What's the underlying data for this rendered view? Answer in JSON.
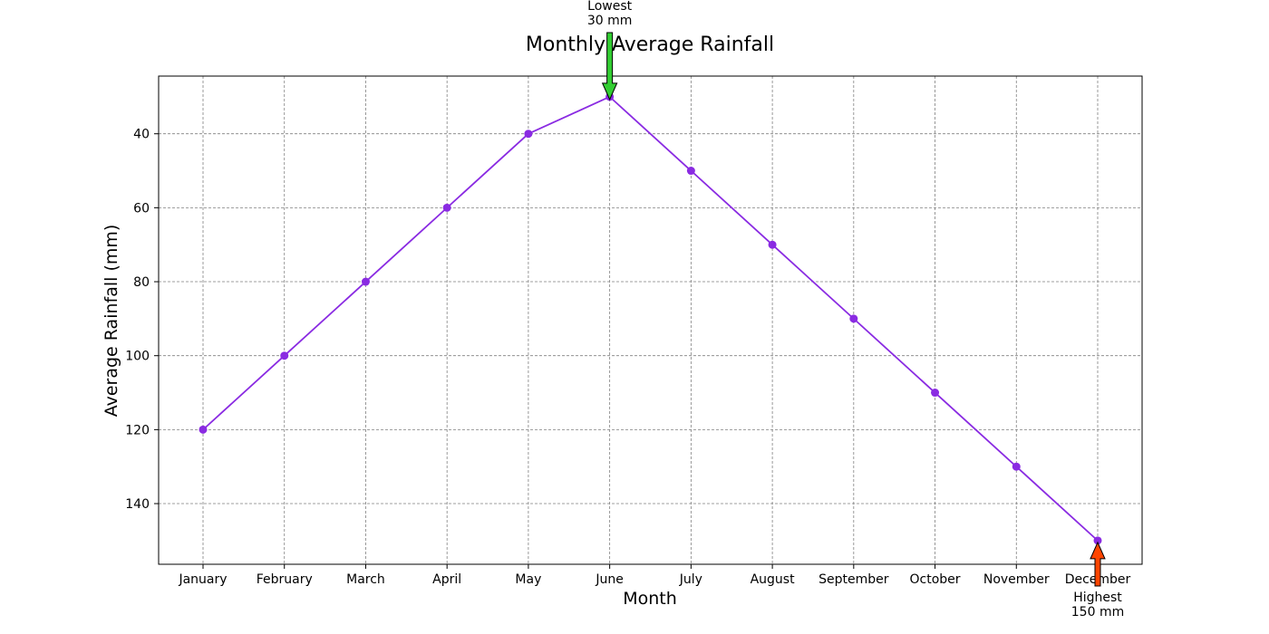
{
  "chart_data": {
    "type": "line",
    "title": "Monthly Average Rainfall",
    "xlabel": "Month",
    "ylabel": "Average Rainfall (mm)",
    "categories": [
      "January",
      "February",
      "March",
      "April",
      "May",
      "June",
      "July",
      "August",
      "September",
      "October",
      "November",
      "December"
    ],
    "series": [
      {
        "values": [
          120,
          100,
          80,
          60,
          40,
          30,
          50,
          70,
          90,
          110,
          130,
          150
        ],
        "color": "#8A2BE2"
      }
    ],
    "y_axis": {
      "inverted": true,
      "range": [
        24.4,
        156.4
      ],
      "ticks": [
        40,
        60,
        80,
        100,
        120,
        140
      ]
    },
    "grid": true,
    "annotations": [
      {
        "category": "June",
        "value": 30,
        "label_line1": "Lowest",
        "label_line2": "30 mm",
        "arrow_color": "#32CD32",
        "position": "above"
      },
      {
        "category": "December",
        "value": 150,
        "label_line1": "Highest",
        "label_line2": "150 mm",
        "arrow_color": "#FF4500",
        "position": "below"
      }
    ],
    "colors": {
      "line": "#8A2BE2",
      "grid": "#808080",
      "axes": "#000000"
    }
  }
}
